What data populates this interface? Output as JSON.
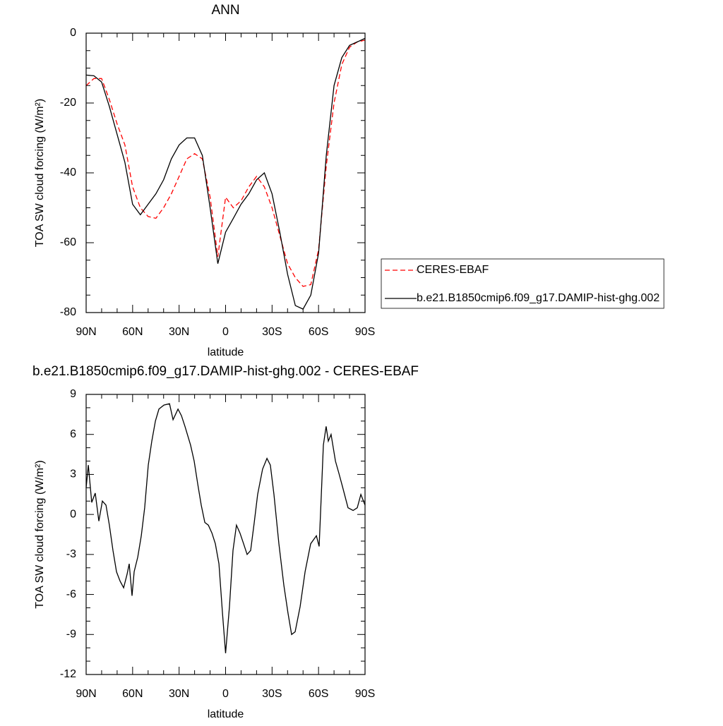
{
  "chart_data": [
    {
      "type": "line",
      "title": "ANN",
      "xlabel": "latitude",
      "ylabel": "TOA SW cloud forcing (W/m²)",
      "x": [
        90,
        85,
        80,
        75,
        70,
        65,
        60,
        55,
        50,
        45,
        40,
        35,
        30,
        25,
        20,
        15,
        10,
        5,
        0,
        -5,
        -10,
        -15,
        -20,
        -25,
        -30,
        -35,
        -40,
        -45,
        -50,
        -55,
        -60,
        -65,
        -70,
        -75,
        -80,
        -85,
        -90
      ],
      "series": [
        {
          "name": "CERES-EBAF",
          "color": "#ff0000",
          "line_style": "dashed",
          "values": [
            -15,
            -13,
            -13,
            -19,
            -26,
            -32,
            -44,
            -50,
            -52.5,
            -53,
            -50,
            -46,
            -41,
            -36,
            -34.5,
            -36,
            -47,
            -64,
            -47,
            -50,
            -48,
            -44,
            -41,
            -44,
            -50,
            -58,
            -66,
            -70,
            -72.5,
            -72,
            -62,
            -38,
            -20,
            -9,
            -4,
            -2.5,
            -2
          ]
        },
        {
          "name": "b.e21.B1850cmip6.f09_g17.DAMIP-hist-ghg.002",
          "color": "#000000",
          "line_style": "solid",
          "values": [
            -12,
            -12.2,
            -14,
            -21,
            -29,
            -37,
            -49,
            -52,
            -49,
            -46,
            -42,
            -36,
            -32,
            -30,
            -30,
            -35,
            -50,
            -66,
            -57,
            -53,
            -49,
            -46,
            -42,
            -40,
            -46,
            -57,
            -69,
            -78,
            -79,
            -75,
            -63,
            -35,
            -15,
            -7,
            -3.5,
            -2.5,
            -1.5
          ]
        }
      ],
      "xlim": [
        90,
        -90
      ],
      "xticks": [
        {
          "value": 90,
          "label": "90N"
        },
        {
          "value": 60,
          "label": "60N"
        },
        {
          "value": 30,
          "label": "30N"
        },
        0,
        {
          "value": -30,
          "label": "30S"
        },
        {
          "value": -60,
          "label": "60S"
        },
        {
          "value": -90,
          "label": "90S"
        }
      ],
      "ylim": [
        -80,
        0
      ],
      "yticks": [
        0,
        -20,
        -40,
        -60,
        -80
      ],
      "legend": "right",
      "grid": false
    },
    {
      "type": "line",
      "title": "b.e21.B1850cmip6.f09_g17.DAMIP-hist-ghg.002 - CERES-EBAF",
      "xlabel": "latitude",
      "ylabel": "TOA SW cloud forcing (W/m²)",
      "x": [
        90,
        88.6,
        86.4,
        84.1,
        81.8,
        79.5,
        77.2,
        75,
        72.7,
        70.4,
        68.1,
        65.8,
        63.6,
        62.2,
        60.4,
        59,
        56.7,
        54.4,
        52.2,
        49.9,
        47.6,
        45.3,
        43,
        39.8,
        36.2,
        33.9,
        30.7,
        28.5,
        26.2,
        22.6,
        20.3,
        18,
        15.7,
        13.4,
        11.1,
        8.8,
        6.6,
        4.3,
        2,
        0,
        -2.5,
        -4.8,
        -7,
        -9.3,
        -11.6,
        -13.9,
        -16.2,
        -18.5,
        -20.7,
        -23.9,
        -26.7,
        -28.9,
        -31.2,
        -34.4,
        -37.6,
        -40.3,
        -42.6,
        -44.9,
        -48.1,
        -51.3,
        -54.9,
        -58.6,
        -60.4,
        -61.8,
        -63.1,
        -64.9,
        -66.3,
        -68.1,
        -70.9,
        -73.1,
        -75.4,
        -79,
        -82.3,
        -85,
        -87.3,
        -90
      ],
      "series": [
        {
          "name": "b.e21.B1850cmip6.f09_g17.DAMIP-hist-ghg.002 - CERES-EBAF",
          "color": "#000000",
          "line_style": "solid",
          "values": [
            2,
            3.7,
            0.9,
            1.6,
            -0.5,
            1,
            0.7,
            -0.8,
            -2.7,
            -4.3,
            -5,
            -5.5,
            -4.5,
            -3.7,
            -6.1,
            -4.3,
            -3.2,
            -1.6,
            0.5,
            3.7,
            5.5,
            7,
            7.9,
            8.2,
            8.3,
            7.1,
            7.9,
            7.4,
            6.6,
            5.2,
            4,
            2.3,
            0.7,
            -0.6,
            -0.8,
            -1.4,
            -2.2,
            -3.7,
            -7.4,
            -10.4,
            -6.9,
            -2.7,
            -0.8,
            -1.4,
            -2.2,
            -3,
            -2.7,
            -0.6,
            1.5,
            3.4,
            4.2,
            3.7,
            1.5,
            -2.2,
            -5.3,
            -7.4,
            -9,
            -8.8,
            -6.9,
            -4.3,
            -2.2,
            -1.6,
            -2.4,
            1.5,
            5.2,
            6.6,
            5.5,
            6,
            4,
            3.1,
            2.1,
            0.5,
            0.3,
            0.5,
            1.5,
            0.7
          ]
        }
      ],
      "xlim": [
        90,
        -90
      ],
      "xticks": [
        {
          "value": 90,
          "label": "90N"
        },
        {
          "value": 60,
          "label": "60N"
        },
        {
          "value": 30,
          "label": "30N"
        },
        0,
        {
          "value": -30,
          "label": "30S"
        },
        {
          "value": -60,
          "label": "60S"
        },
        {
          "value": -90,
          "label": "90S"
        }
      ],
      "ylim": [
        -12,
        9
      ],
      "yticks": [
        9,
        6,
        3,
        0,
        -3,
        -6,
        -9,
        -12
      ],
      "grid": false
    }
  ]
}
